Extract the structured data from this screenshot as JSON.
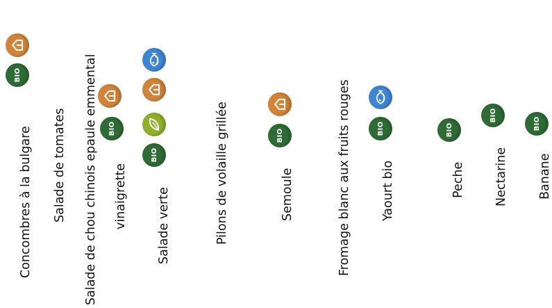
{
  "colors": {
    "bio": "#2e6b35",
    "local": "#d2843a",
    "sea": "#3e86d3",
    "veg": "#8fb12a"
  },
  "icons": {
    "bio": "bio-label-icon",
    "local": "local-producer-icon",
    "sea": "sustainable-fishing-icon",
    "veg": "vegetarian-leaf-icon"
  },
  "bio_label": "BIO",
  "items": [
    {
      "id": "concombres",
      "lines": [
        "Concombres à la bulgare"
      ],
      "labels": [
        "bio",
        "local"
      ]
    },
    {
      "id": "tomates",
      "lines": [
        "Salade de tomates"
      ],
      "labels": []
    },
    {
      "id": "chou",
      "lines": [
        "Salade de chou chinois epaule emmental",
        "vinaigrette"
      ],
      "labels": [
        "bio",
        "local"
      ]
    },
    {
      "id": "salade-verte",
      "lines": [
        "Salade verte"
      ],
      "labels": [
        "bio",
        "veg",
        "local",
        "sea"
      ]
    },
    {
      "id": "pilons",
      "lines": [
        "Pilons de volaille grillée"
      ],
      "labels": []
    },
    {
      "id": "semoule",
      "lines": [
        "Semoule"
      ],
      "labels": [
        "bio",
        "local"
      ]
    },
    {
      "id": "fromage",
      "lines": [
        "Fromage blanc aux fruits rouges"
      ],
      "labels": []
    },
    {
      "id": "yaourt",
      "lines": [
        "Yaourt bio"
      ],
      "labels": [
        "bio",
        "sea"
      ]
    },
    {
      "id": "peche",
      "lines": [
        "Peche"
      ],
      "labels": [
        "bio"
      ]
    },
    {
      "id": "nectarine",
      "lines": [
        "Nectarine"
      ],
      "labels": [
        "bio"
      ]
    },
    {
      "id": "banane",
      "lines": [
        "Banane"
      ],
      "labels": [
        "bio"
      ]
    }
  ]
}
